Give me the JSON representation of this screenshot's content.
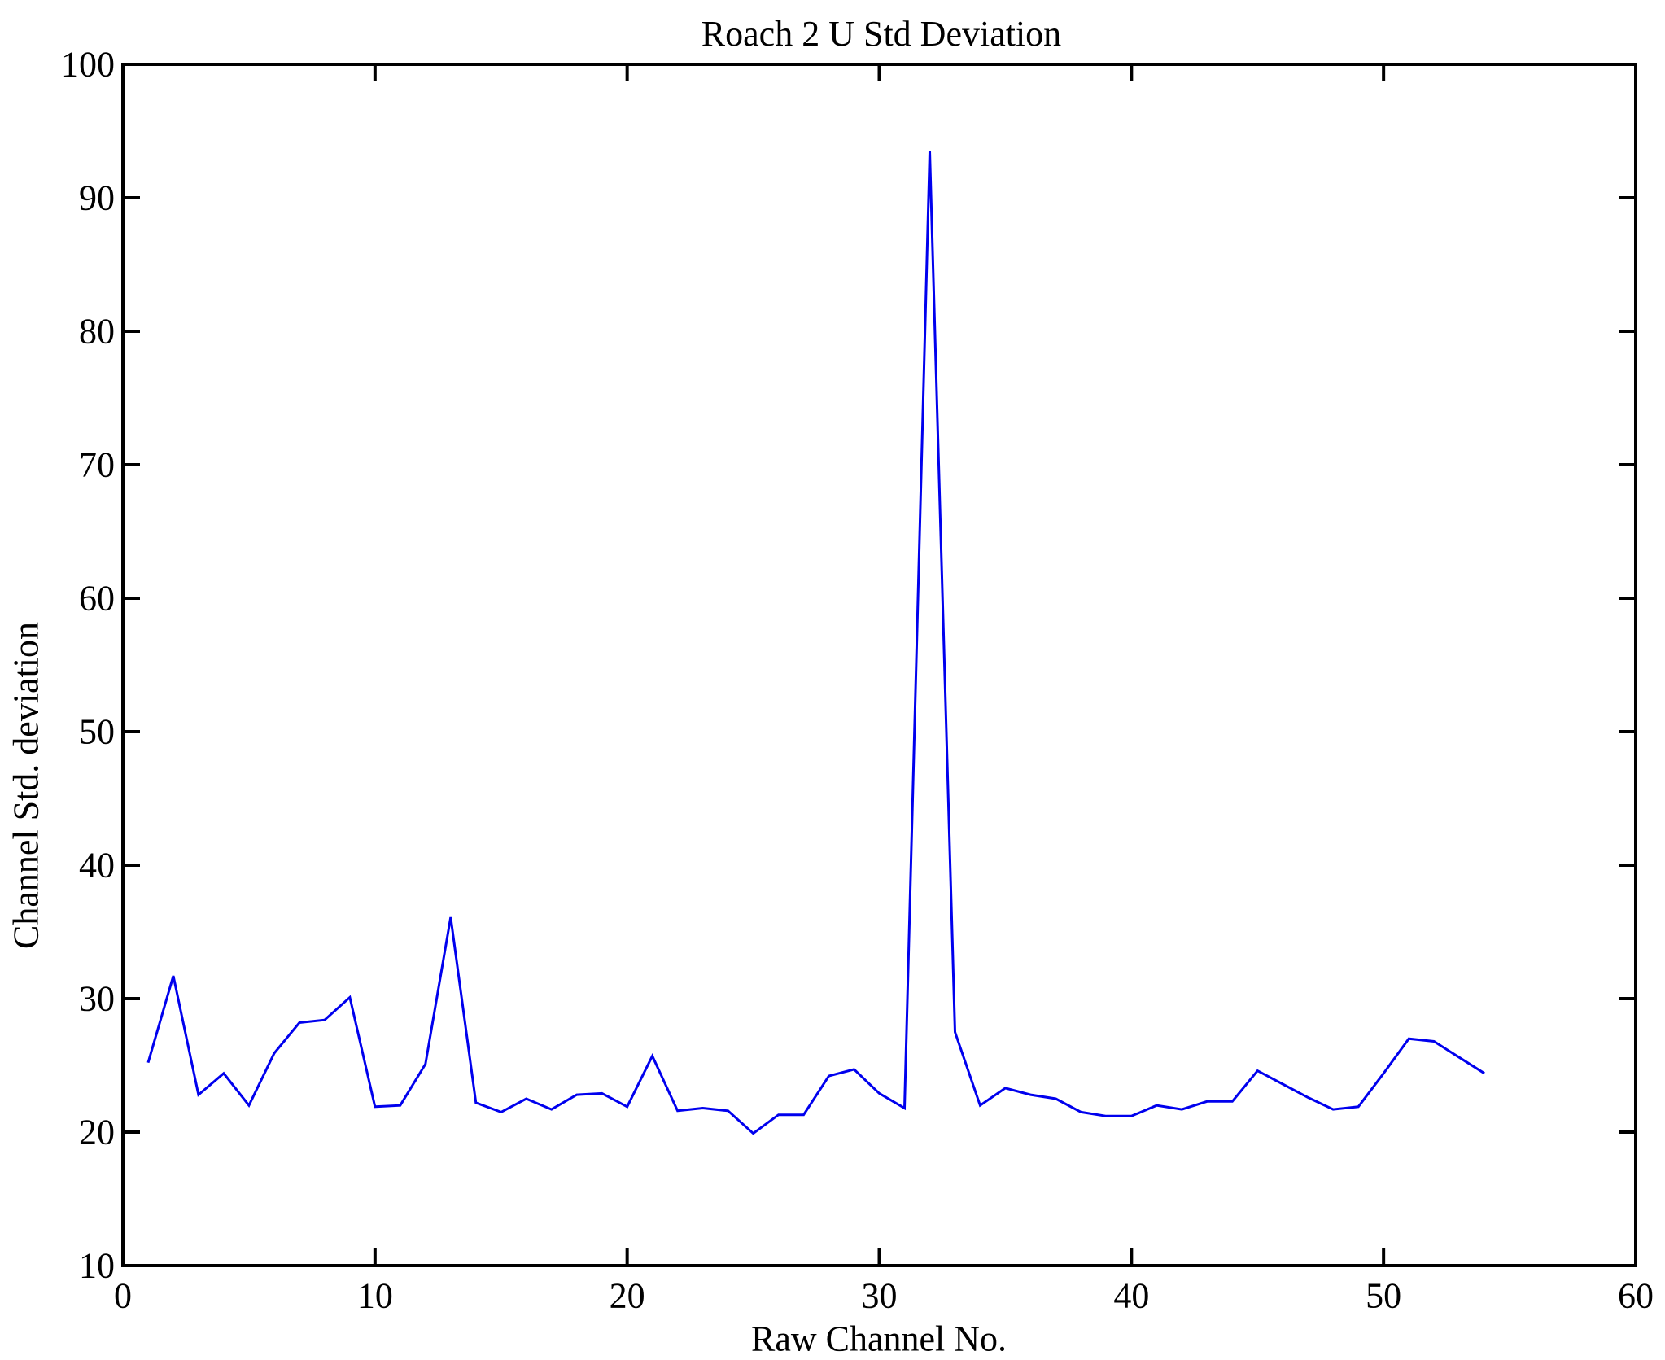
{
  "chart_data": {
    "type": "line",
    "title": "Roach 2 U Std Deviation",
    "xlabel": "Raw Channel No.",
    "ylabel": "Channel Std. deviation",
    "xlim": [
      0,
      60
    ],
    "ylim": [
      10,
      100
    ],
    "xticks": [
      0,
      10,
      20,
      30,
      40,
      50,
      60
    ],
    "yticks": [
      10,
      20,
      30,
      40,
      50,
      60,
      70,
      80,
      90,
      100
    ],
    "grid": false,
    "legend_position": "none",
    "line_color": "#0000ee",
    "axis_color": "#000000",
    "background_color": "#ffffff",
    "series": [
      {
        "name": "Channel Std. deviation",
        "x": [
          1,
          2,
          3,
          4,
          5,
          6,
          7,
          8,
          9,
          10,
          11,
          12,
          13,
          14,
          15,
          16,
          17,
          18,
          19,
          20,
          21,
          22,
          23,
          24,
          25,
          26,
          27,
          28,
          29,
          30,
          31,
          32,
          33,
          34,
          35,
          36,
          37,
          38,
          39,
          40,
          41,
          42,
          43,
          44,
          45,
          46,
          47,
          48,
          49,
          50,
          51,
          52,
          53,
          54
        ],
        "y": [
          25.2,
          31.7,
          22.8,
          24.4,
          22.0,
          25.9,
          28.2,
          28.4,
          30.1,
          21.9,
          22.0,
          25.1,
          36.1,
          22.2,
          21.5,
          22.5,
          21.7,
          22.8,
          22.9,
          21.9,
          25.7,
          21.6,
          21.8,
          21.6,
          19.9,
          21.3,
          21.3,
          24.2,
          24.7,
          22.9,
          21.8,
          93.5,
          27.5,
          22.0,
          23.3,
          22.8,
          22.5,
          21.5,
          21.2,
          21.2,
          22.0,
          21.7,
          22.3,
          22.3,
          24.6,
          23.6,
          22.6,
          21.7,
          21.9,
          24.4,
          27.0,
          26.8,
          25.6,
          24.4
        ]
      }
    ]
  }
}
